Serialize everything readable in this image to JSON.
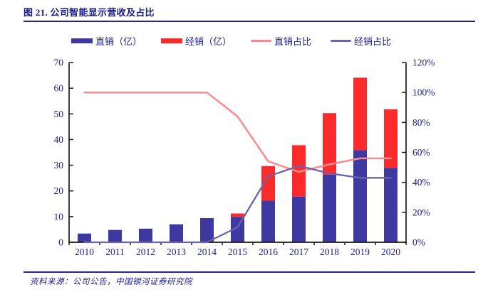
{
  "header": {
    "title": "图 21. 公司智能显示营收及占比"
  },
  "footer": {
    "source": "资料来源：公司公告，中国银河证券研究院"
  },
  "colors": {
    "text_navy": "#1c1c99",
    "title_navy": "#17178c",
    "rule_navy": "#2b2390",
    "axis_black": "#1a1a1a",
    "direct_bar": "#3e38a1",
    "dist_bar": "#fb2b2b",
    "direct_line": "#fb8a8a",
    "dist_line": "#6d63ab"
  },
  "chart_data": {
    "type": "bar",
    "subtype": "stacked-bars-with-lines",
    "categories": [
      "2010",
      "2011",
      "2012",
      "2013",
      "2014",
      "2015",
      "2016",
      "2017",
      "2018",
      "2019",
      "2020"
    ],
    "series": [
      {
        "name": "直销（亿）",
        "type": "bar",
        "axis": "left",
        "color": "#3e38a1",
        "values": [
          3.4,
          4.8,
          5.3,
          7.0,
          9.4,
          9.9,
          16.2,
          17.8,
          26.3,
          35.9,
          29.0
        ]
      },
      {
        "name": "经销（亿）",
        "type": "bar",
        "axis": "left",
        "color": "#fb2b2b",
        "values": [
          0,
          0,
          0,
          0,
          0,
          1.3,
          13.5,
          20.0,
          24.0,
          28.2,
          22.8
        ]
      },
      {
        "name": "直销占比",
        "type": "line",
        "axis": "right",
        "color": "#fb8a8a",
        "values": [
          100,
          100,
          100,
          100,
          100,
          84,
          54,
          47,
          52,
          56,
          56
        ]
      },
      {
        "name": "经销占比",
        "type": "line",
        "axis": "right",
        "color": "#6d63ab",
        "values": [
          0,
          0,
          0,
          0,
          0,
          10,
          44,
          51,
          46,
          43,
          43
        ]
      }
    ],
    "left_axis": {
      "min": 0,
      "max": 70,
      "step": 10,
      "suffix": ""
    },
    "right_axis": {
      "min": 0,
      "max": 120,
      "step": 20,
      "suffix": "%"
    },
    "legend_position": "top",
    "grid": false,
    "title": "公司智能显示营收及占比",
    "xlabel": "",
    "ylabel_left": "亿",
    "ylabel_right": "%"
  }
}
